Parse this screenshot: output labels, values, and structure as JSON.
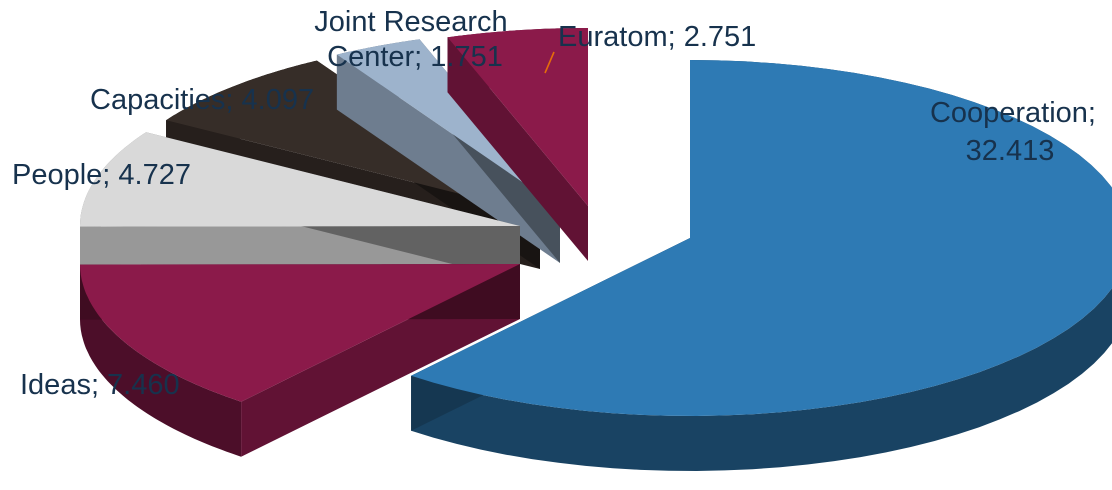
{
  "chart_data": {
    "type": "pie",
    "title": "",
    "slices": [
      {
        "label": "Cooperation",
        "value": 32.413,
        "display": "32.413",
        "color": "#2e7ab4"
      },
      {
        "label": "Ideas",
        "value": 7.46,
        "display": "7.460",
        "color": "#8b1a4a"
      },
      {
        "label": "People",
        "value": 4.727,
        "display": "4.727",
        "color": "#d9d9d9"
      },
      {
        "label": "Capacities",
        "value": 4.097,
        "display": "4.097",
        "color": "#362d28"
      },
      {
        "label": "Joint Research Center",
        "value": 1.751,
        "display": "1.751",
        "color": "#9db3cc"
      },
      {
        "label": "Euratom",
        "value": 2.751,
        "display": "2.751",
        "color": "#8b1a4a"
      }
    ],
    "label_color": "#17324d",
    "leader_line_color": "#e46c0a",
    "exploded": true,
    "style": "3d"
  }
}
